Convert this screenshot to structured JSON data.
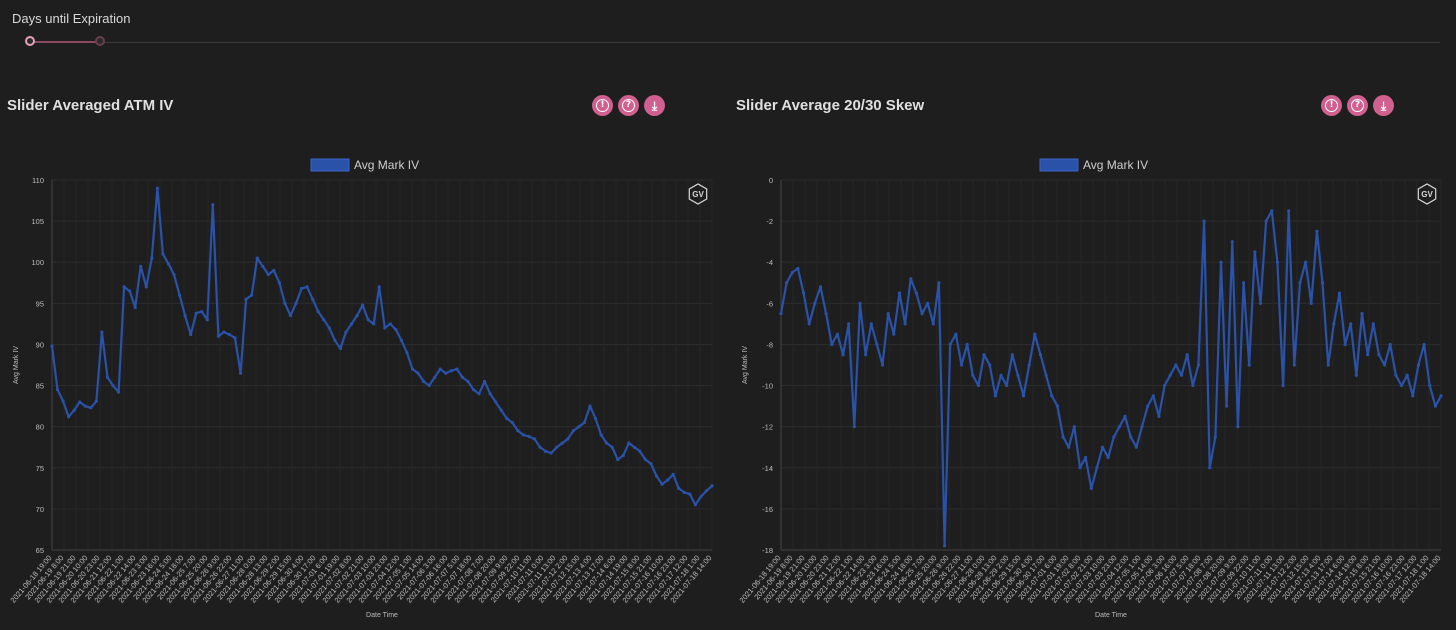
{
  "slider": {
    "label": "Days until Expiration"
  },
  "colors": {
    "accent": "#d0608f",
    "series": "#2a52a8",
    "background": "#1e1e1e"
  },
  "icons": [
    "alert-icon",
    "help-icon",
    "download-icon"
  ],
  "panels": [
    {
      "title": "Slider Averaged ATM IV",
      "badge": "GV"
    },
    {
      "title": "Slider Average 20/30 Skew",
      "badge": "GV"
    }
  ],
  "chart_data": [
    {
      "type": "line",
      "title": "",
      "legend": "Avg Mark IV",
      "legend_position": "top",
      "xlabel": "Date Time",
      "ylabel": "Avg Mark IV",
      "ylim": [
        65,
        110
      ],
      "yticks": [
        110,
        105,
        100,
        95,
        90,
        85,
        80,
        75,
        70,
        65
      ],
      "grid": true,
      "x_tick_labels": [
        "2021-06-18 19:00",
        "2021-06-19 8:00",
        "2021-06-19 21:00",
        "2021-06-20 10:00",
        "2021-06-20 23:00",
        "2021-06-21 12:00",
        "2021-06-22 1:00",
        "2021-06-22 14:00",
        "2021-06-23 3:00",
        "2021-06-23 16:00",
        "2021-06-24 5:00",
        "2021-06-24 18:00",
        "2021-06-25 7:00",
        "2021-06-25 20:00",
        "2021-06-26 9:00",
        "2021-06-26 22:00",
        "2021-06-27 11:00",
        "2021-06-28 0:00",
        "2021-06-28 13:00",
        "2021-06-29 2:00",
        "2021-06-29 15:00",
        "2021-06-30 4:00",
        "2021-06-30 17:00",
        "2021-07-01 6:00",
        "2021-07-01 19:00",
        "2021-07-02 8:00",
        "2021-07-02 21:00",
        "2021-07-03 10:00",
        "2021-07-03 23:00",
        "2021-07-04 12:00",
        "2021-07-05 1:00",
        "2021-07-05 14:00",
        "2021-07-06 3:00",
        "2021-07-06 16:00",
        "2021-07-07 5:00",
        "2021-07-07 18:00",
        "2021-07-08 7:00",
        "2021-07-08 20:00",
        "2021-07-09 9:00",
        "2021-07-09 22:00",
        "2021-07-10 11:00",
        "2021-07-11 0:00",
        "2021-07-11 13:00",
        "2021-07-12 2:00",
        "2021-07-12 15:00",
        "2021-07-13 4:00",
        "2021-07-13 17:00",
        "2021-07-14 6:00",
        "2021-07-14 19:00",
        "2021-07-15 8:00",
        "2021-07-15 21:00",
        "2021-07-16 10:00",
        "2021-07-16 23:00",
        "2021-07-17 12:00",
        "2021-07-18 1:00",
        "2021-07-18 14:00"
      ],
      "series": [
        {
          "name": "Avg Mark IV",
          "values": [
            89.8,
            84.5,
            83.1,
            81.2,
            82.0,
            83.0,
            82.5,
            82.3,
            83.1,
            91.5,
            86.0,
            85.0,
            84.2,
            97.0,
            96.5,
            94.5,
            99.5,
            97.0,
            100.5,
            109.0,
            101.0,
            99.8,
            98.5,
            96.0,
            93.5,
            91.2,
            93.8,
            94.0,
            93.0,
            107.0,
            91.0,
            91.5,
            91.2,
            90.8,
            86.5,
            95.5,
            96.0,
            100.5,
            99.5,
            98.5,
            99.0,
            97.5,
            95.0,
            93.5,
            95.0,
            96.8,
            97.0,
            95.5,
            94.0,
            93.0,
            92.0,
            90.5,
            89.5,
            91.5,
            92.5,
            93.5,
            94.8,
            93.0,
            92.5,
            97.0,
            92.0,
            92.5,
            91.8,
            90.5,
            89.0,
            87.0,
            86.5,
            85.5,
            85.0,
            86.0,
            87.0,
            86.5,
            86.8,
            87.0,
            86.0,
            85.5,
            84.5,
            84.0,
            85.5,
            84.0,
            83.0,
            82.0,
            81.0,
            80.5,
            79.5,
            79.0,
            78.8,
            78.5,
            77.5,
            77.0,
            76.8,
            77.5,
            78.0,
            78.5,
            79.5,
            80.0,
            80.5,
            82.5,
            81.0,
            79.0,
            78.0,
            77.5,
            76.0,
            76.5,
            78.0,
            77.5,
            77.0,
            76.0,
            75.5,
            74.0,
            73.0,
            73.5,
            74.2,
            72.5,
            72.0,
            71.8,
            70.5,
            71.5,
            72.2,
            72.8
          ]
        }
      ]
    },
    {
      "type": "line",
      "title": "",
      "legend": "Avg Mark IV",
      "legend_position": "top",
      "xlabel": "Date Time",
      "ylabel": "Avg Mark IV",
      "ylim": [
        -18,
        0
      ],
      "yticks": [
        0,
        -2,
        -4,
        -6,
        -8,
        -10,
        -12,
        -14,
        -16,
        -18
      ],
      "grid": true,
      "x_tick_labels": [
        "2021-06-18 19:00",
        "2021-06-19 8:00",
        "2021-06-19 21:00",
        "2021-06-20 10:00",
        "2021-06-20 23:00",
        "2021-06-21 12:00",
        "2021-06-22 1:00",
        "2021-06-22 14:00",
        "2021-06-23 3:00",
        "2021-06-23 16:00",
        "2021-06-24 5:00",
        "2021-06-24 18:00",
        "2021-06-25 7:00",
        "2021-06-25 20:00",
        "2021-06-26 9:00",
        "2021-06-26 22:00",
        "2021-06-27 11:00",
        "2021-06-28 0:00",
        "2021-06-28 13:00",
        "2021-06-29 2:00",
        "2021-06-29 15:00",
        "2021-06-30 4:00",
        "2021-06-30 17:00",
        "2021-07-01 6:00",
        "2021-07-01 19:00",
        "2021-07-02 8:00",
        "2021-07-02 21:00",
        "2021-07-03 10:00",
        "2021-07-03 23:00",
        "2021-07-04 12:00",
        "2021-07-05 1:00",
        "2021-07-05 14:00",
        "2021-07-06 3:00",
        "2021-07-06 16:00",
        "2021-07-07 5:00",
        "2021-07-07 18:00",
        "2021-07-08 7:00",
        "2021-07-08 20:00",
        "2021-07-09 9:00",
        "2021-07-09 22:00",
        "2021-07-10 11:00",
        "2021-07-11 0:00",
        "2021-07-11 13:00",
        "2021-07-12 2:00",
        "2021-07-12 15:00",
        "2021-07-13 4:00",
        "2021-07-13 17:00",
        "2021-07-14 6:00",
        "2021-07-14 19:00",
        "2021-07-15 8:00",
        "2021-07-15 21:00",
        "2021-07-16 10:00",
        "2021-07-16 23:00",
        "2021-07-17 12:00",
        "2021-07-18 1:00",
        "2021-07-18 14:00"
      ],
      "series": [
        {
          "name": "Avg Mark IV",
          "values": [
            -6.5,
            -5.0,
            -4.5,
            -4.3,
            -5.5,
            -7.0,
            -6.0,
            -5.2,
            -6.5,
            -8.0,
            -7.5,
            -8.5,
            -7.0,
            -12.0,
            -6.0,
            -8.5,
            -7.0,
            -8.0,
            -9.0,
            -6.5,
            -7.5,
            -5.5,
            -7.0,
            -4.8,
            -5.5,
            -6.5,
            -6.0,
            -7.0,
            -5.0,
            -17.8,
            -8.0,
            -7.5,
            -9.0,
            -8.0,
            -9.5,
            -10.0,
            -8.5,
            -9.0,
            -10.5,
            -9.5,
            -10.0,
            -8.5,
            -9.5,
            -10.5,
            -9.0,
            -7.5,
            -8.5,
            -9.5,
            -10.5,
            -11.0,
            -12.5,
            -13.0,
            -12.0,
            -14.0,
            -13.5,
            -15.0,
            -14.0,
            -13.0,
            -13.5,
            -12.5,
            -12.0,
            -11.5,
            -12.5,
            -13.0,
            -12.0,
            -11.0,
            -10.5,
            -11.5,
            -10.0,
            -9.5,
            -9.0,
            -9.5,
            -8.5,
            -10.0,
            -9.0,
            -2.0,
            -14.0,
            -12.5,
            -4.0,
            -11.0,
            -3.0,
            -12.0,
            -5.0,
            -9.0,
            -3.5,
            -6.0,
            -2.0,
            -1.5,
            -4.0,
            -10.0,
            -1.5,
            -9.0,
            -5.0,
            -4.0,
            -6.0,
            -2.5,
            -5.0,
            -9.0,
            -7.0,
            -5.5,
            -8.0,
            -7.0,
            -9.5,
            -6.5,
            -8.5,
            -7.0,
            -8.5,
            -9.0,
            -8.0,
            -9.5,
            -10.0,
            -9.5,
            -10.5,
            -9.0,
            -8.0,
            -10.0,
            -11.0,
            -10.5
          ]
        }
      ]
    }
  ]
}
